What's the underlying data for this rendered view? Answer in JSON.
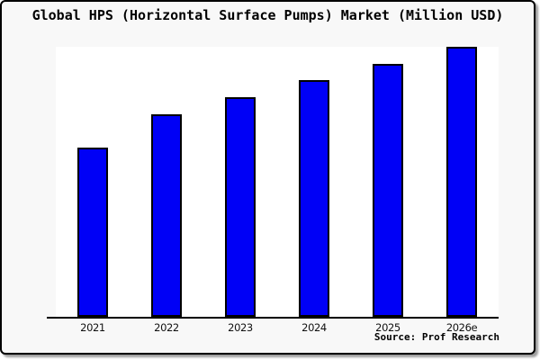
{
  "window": {
    "background": "#f8f8f8",
    "border_color": "#000000",
    "shadow_color": "#9e9e9e"
  },
  "title": "Global HPS (Horizontal Surface Pumps) Market (Million USD)",
  "source_credit": "Source: Prof Research",
  "chart_data": {
    "type": "bar",
    "title": "Global HPS (Horizontal Surface Pumps) Market (Million USD)",
    "categories": [
      "2021",
      "2022",
      "2023",
      "2024",
      "2025",
      "2026e"
    ],
    "values": [
      188,
      225,
      244,
      263,
      281,
      300
    ],
    "value_scale_note": "y-axis has no tick labels; values are relative bar heights read from pixels",
    "xlabel": "",
    "ylabel": "",
    "ylim": [
      0,
      300
    ],
    "grid": "off",
    "legend": "none",
    "bar_fill": "#0000f6",
    "bar_border": "#000000",
    "plot_background": "#ffffff",
    "axis_color": "#000000"
  }
}
